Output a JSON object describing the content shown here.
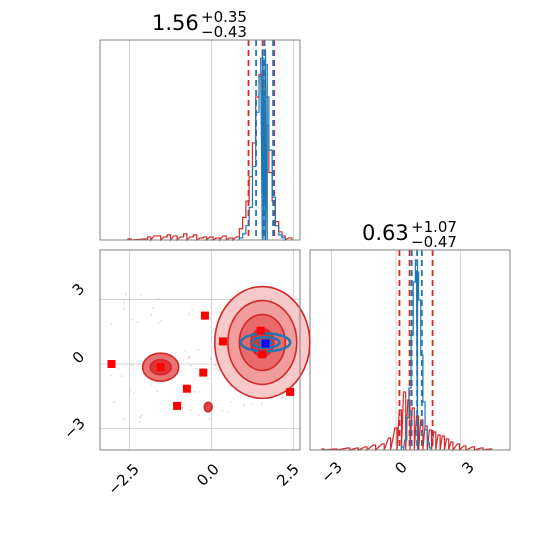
{
  "chart_data": [
    {
      "type": "histogram",
      "panel": "marginal-x",
      "title": {
        "value": "1.56",
        "plus": "+0.35",
        "minus": "−0.43"
      },
      "x_range": [
        -3.4,
        2.7
      ],
      "grid": true,
      "series": [
        {
          "color": "#d62728",
          "quantiles": [
            1.13,
            1.56,
            1.91
          ],
          "bins": [
            [
              -2.5,
              1
            ],
            [
              -2.0,
              1
            ],
            [
              -1.9,
              3
            ],
            [
              -1.7,
              4
            ],
            [
              -1.6,
              4
            ],
            [
              -1.4,
              3
            ],
            [
              -1.3,
              5
            ],
            [
              -1.1,
              4
            ],
            [
              -0.9,
              3
            ],
            [
              -0.8,
              6
            ],
            [
              -0.6,
              3
            ],
            [
              -0.5,
              5
            ],
            [
              -0.3,
              2
            ],
            [
              -0.2,
              3
            ],
            [
              0.0,
              3
            ],
            [
              0.2,
              2
            ],
            [
              0.4,
              4
            ],
            [
              0.6,
              2
            ],
            [
              0.8,
              3
            ],
            [
              0.9,
              11
            ],
            [
              1.0,
              22
            ],
            [
              1.1,
              38
            ],
            [
              1.2,
              62
            ],
            [
              1.3,
              95
            ],
            [
              1.4,
              140
            ],
            [
              1.5,
              162
            ],
            [
              1.6,
              150
            ],
            [
              1.7,
              112
            ],
            [
              1.8,
              66
            ],
            [
              1.9,
              38
            ],
            [
              2.0,
              18
            ],
            [
              2.1,
              8
            ],
            [
              2.2,
              4
            ],
            [
              2.4,
              2
            ]
          ]
        },
        {
          "color": "#1f77b4",
          "quantiles": [
            1.36,
            1.62,
            1.88
          ],
          "bins": [
            [
              0.9,
              2
            ],
            [
              1.0,
              6
            ],
            [
              1.1,
              14
            ],
            [
              1.2,
              32
            ],
            [
              1.3,
              72
            ],
            [
              1.4,
              125
            ],
            [
              1.5,
              160
            ],
            [
              1.55,
              178
            ],
            [
              1.6,
              186
            ],
            [
              1.65,
              172
            ],
            [
              1.7,
              140
            ],
            [
              1.8,
              88
            ],
            [
              1.9,
              42
            ],
            [
              2.0,
              14
            ],
            [
              2.1,
              5
            ],
            [
              2.2,
              2
            ]
          ]
        }
      ]
    },
    {
      "type": "histogram",
      "panel": "marginal-y",
      "title": {
        "value": "0.63",
        "plus": "+1.07",
        "minus": "−0.47"
      },
      "x_range": [
        -4.0,
        5.3
      ],
      "grid": true,
      "series": [
        {
          "color": "#d62728",
          "quantiles": [
            0.16,
            0.63,
            1.7
          ],
          "bins": [
            [
              -3.4,
              1
            ],
            [
              -2.8,
              1
            ],
            [
              -2.2,
              2
            ],
            [
              -1.8,
              2
            ],
            [
              -1.4,
              3
            ],
            [
              -1.0,
              5
            ],
            [
              -0.6,
              6
            ],
            [
              -0.3,
              12
            ],
            [
              0.0,
              22
            ],
            [
              0.2,
              40
            ],
            [
              0.4,
              58
            ],
            [
              0.6,
              50
            ],
            [
              0.8,
              42
            ],
            [
              1.0,
              34
            ],
            [
              1.2,
              30
            ],
            [
              1.4,
              24
            ],
            [
              1.6,
              20
            ],
            [
              1.8,
              18
            ],
            [
              2.0,
              15
            ],
            [
              2.2,
              14
            ],
            [
              2.4,
              11
            ],
            [
              2.6,
              8
            ],
            [
              2.9,
              6
            ],
            [
              3.2,
              4
            ],
            [
              3.6,
              3
            ],
            [
              4.0,
              2
            ],
            [
              4.4,
              1
            ]
          ]
        },
        {
          "color": "#1f77b4",
          "quantiles": [
            0.73,
            0.98,
            1.2
          ],
          "bins": [
            [
              0.3,
              3
            ],
            [
              0.45,
              10
            ],
            [
              0.55,
              32
            ],
            [
              0.65,
              62
            ],
            [
              0.75,
              115
            ],
            [
              0.85,
              168
            ],
            [
              0.95,
              190
            ],
            [
              1.0,
              178
            ],
            [
              1.1,
              150
            ],
            [
              1.2,
              95
            ],
            [
              1.3,
              48
            ],
            [
              1.4,
              20
            ],
            [
              1.5,
              7
            ],
            [
              1.6,
              2
            ]
          ]
        }
      ]
    },
    {
      "type": "scatter",
      "panel": "joint",
      "x_range": [
        -3.4,
        2.7
      ],
      "y_range": [
        -4.0,
        5.3
      ],
      "x_ticks": [
        "−2.5",
        "0.0",
        "2.5"
      ],
      "y_ticks": [
        "3",
        "0",
        "−3"
      ],
      "x_ticks_bottom_right": [
        "−3",
        "0",
        "3"
      ],
      "grid": true,
      "contours": [
        {
          "color": "#d62728",
          "center": [
            1.55,
            1.0
          ],
          "rx": [
            1.45,
            1.05,
            0.7,
            0.35
          ],
          "ry": [
            2.6,
            1.95,
            1.3,
            0.65
          ]
        },
        {
          "color": "#d62728",
          "center": [
            -1.55,
            -0.15
          ],
          "rx": [
            0.55,
            0.32
          ],
          "ry": [
            0.65,
            0.35
          ]
        },
        {
          "color": "#d62728",
          "center": [
            -0.1,
            -2.0
          ],
          "rx": [
            0.12
          ],
          "ry": [
            0.22
          ]
        },
        {
          "color": "#1f77b4",
          "center": [
            1.65,
            1.0
          ],
          "rx": [
            0.75,
            0.42,
            0.18
          ],
          "ry": [
            0.42,
            0.25,
            0.1
          ]
        }
      ],
      "markers": [
        {
          "color": "#ff0000",
          "points": [
            [
              -3.05,
              0.0
            ],
            [
              -1.55,
              -0.15
            ],
            [
              -0.75,
              -1.15
            ],
            [
              -1.05,
              -1.95
            ],
            [
              -0.25,
              -0.4
            ],
            [
              -0.2,
              2.25
            ],
            [
              0.35,
              1.05
            ],
            [
              1.5,
              1.55
            ],
            [
              1.55,
              0.45
            ],
            [
              2.4,
              -1.3
            ]
          ]
        },
        {
          "color": "#0000ff",
          "points": [
            [
              1.65,
              0.95
            ]
          ]
        }
      ]
    }
  ]
}
